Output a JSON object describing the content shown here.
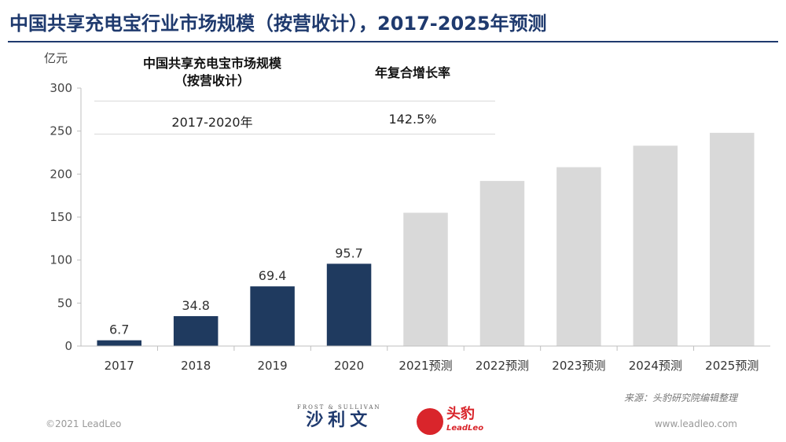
{
  "title": "中国共享充电宝行业市场规模（按营收计），2017-2025年预测",
  "table": {
    "col1_header": "中国共享充电宝市场规模\n（按营收计）",
    "col2_header": "年复合增长率",
    "period": "2017-2020年",
    "cagr": "142.5%"
  },
  "chart_data": {
    "type": "bar",
    "ylabel": "亿元",
    "ylim": [
      0,
      300
    ],
    "yticks": [
      "0",
      "50",
      "100",
      "150",
      "200",
      "250",
      "300"
    ],
    "grid": false,
    "categories": [
      "2017",
      "2018",
      "2019",
      "2020",
      "2021预测",
      "2022预测",
      "2023预测",
      "2024预测",
      "2025预测"
    ],
    "values": [
      6.7,
      34.8,
      69.4,
      95.7,
      155,
      192,
      208,
      233,
      248
    ],
    "data_labels": [
      "6.7",
      "34.8",
      "69.4",
      "95.7",
      "",
      "",
      "",
      "",
      ""
    ],
    "colors": {
      "actual": "#1f3a5f",
      "forecast": "#d9d9d9"
    },
    "forecast_start_index": 4
  },
  "footer": {
    "source": "来源：头豹研究院编辑整理",
    "copyright": "©2021 LeadLeo",
    "website": "www.leadleo.com",
    "frost_small": "FROST & SULLIVAN",
    "frost_cn": "沙利文",
    "leadleo_cn": "头豹",
    "leadleo_en": "LeadLeo"
  },
  "icons": {
    "leadleo": "leopard-logo-icon"
  }
}
